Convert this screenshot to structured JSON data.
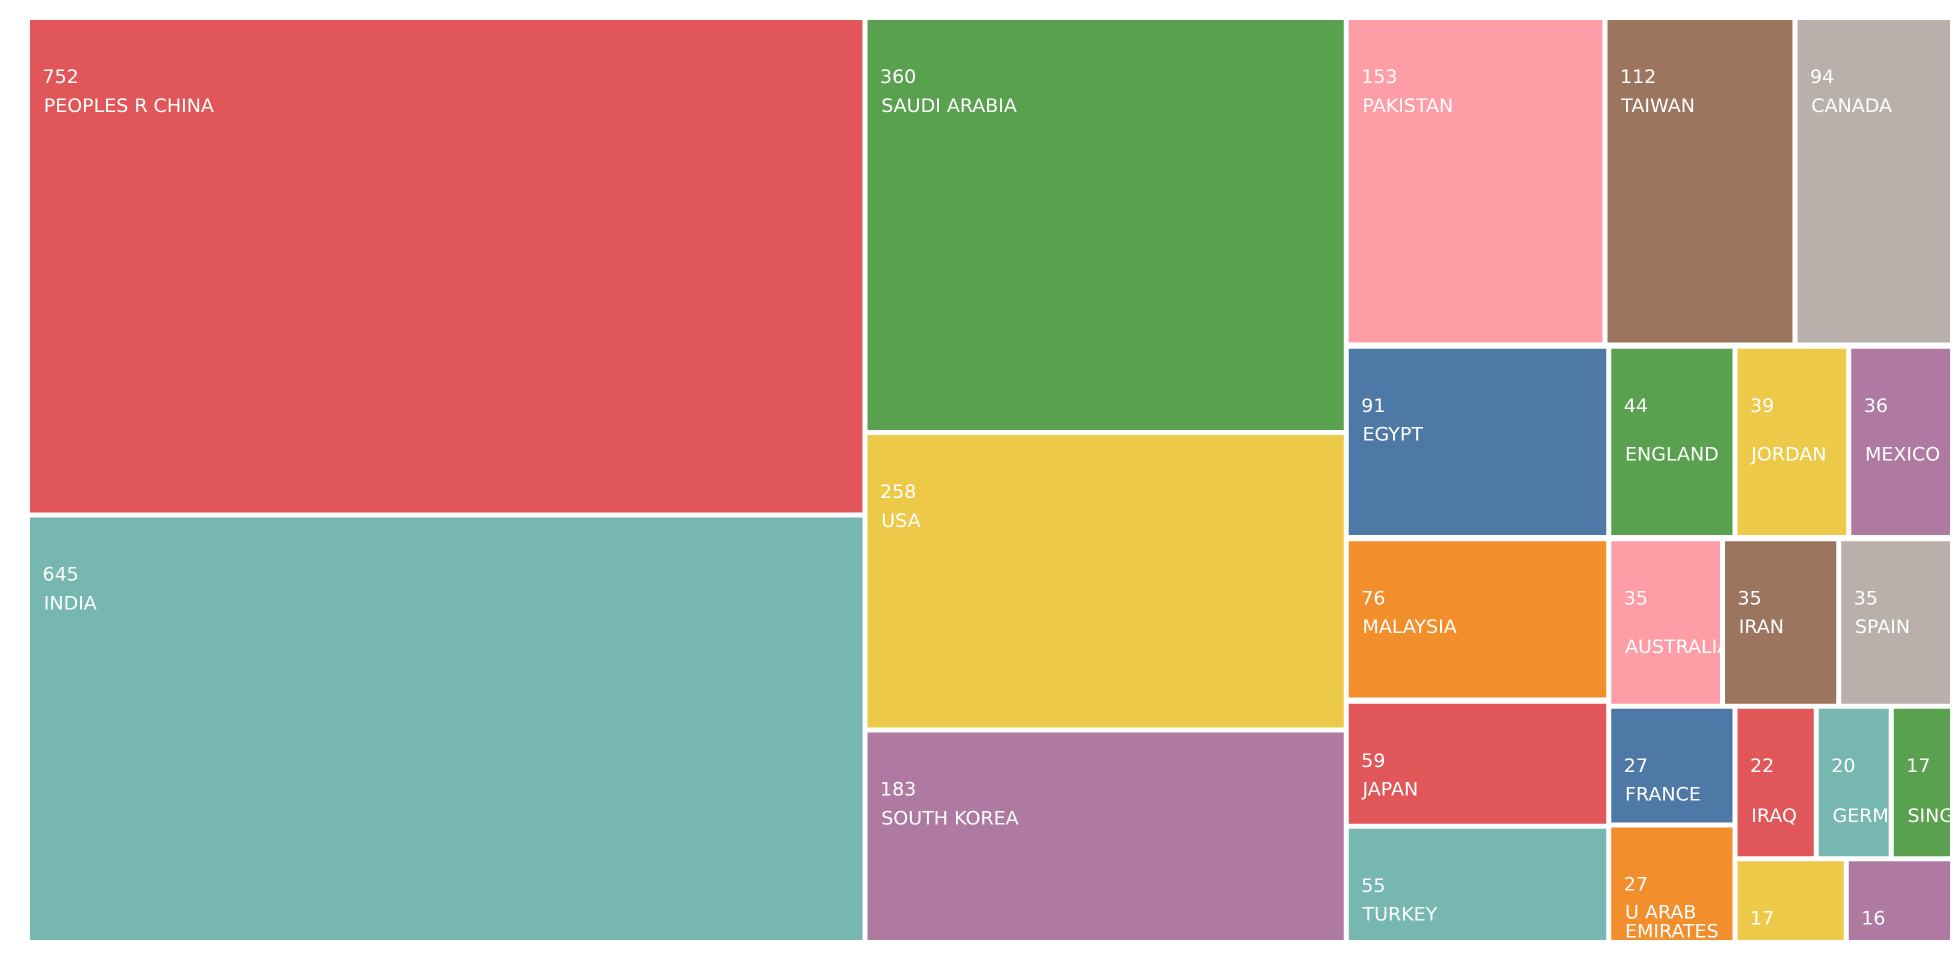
{
  "chart_data": {
    "type": "treemap",
    "categories": [
      "PEOPLES R CHINA",
      "INDIA",
      "SAUDI ARABIA",
      "USA",
      "SOUTH KOREA",
      "PAKISTAN",
      "TAIWAN",
      "CANADA",
      "EGYPT",
      "ENGLAND",
      "JORDAN",
      "MEXICO",
      "MALAYSIA",
      "AUSTRALIA",
      "IRAN",
      "SPAIN",
      "JAPAN",
      "TURKEY",
      "FRANCE",
      "IRAQ",
      "GERMANY",
      "SINGAPORE",
      "U ARAB EMIRATES",
      null,
      null
    ],
    "values": [
      752,
      645,
      360,
      258,
      183,
      153,
      112,
      94,
      91,
      44,
      39,
      36,
      76,
      35,
      35,
      35,
      59,
      55,
      27,
      22,
      20,
      17,
      27,
      17,
      16
    ],
    "colors": [
      "#e15759",
      "#76b7b2",
      "#59a14f",
      "#edc949",
      "#af7aa1",
      "#ff9da7",
      "#9c755f",
      "#bab0ab",
      "#4e79a7",
      "#59a14f",
      "#edc949",
      "#af7aa1",
      "#f28e2b",
      "#ff9da7",
      "#9c755f",
      "#bab0ab",
      "#e15759",
      "#76b7b2",
      "#4e79a7",
      "#e15759",
      "#76b7b2",
      "#59a14f",
      "#f28e2b",
      "#edc949",
      "#af7aa1"
    ]
  }
}
